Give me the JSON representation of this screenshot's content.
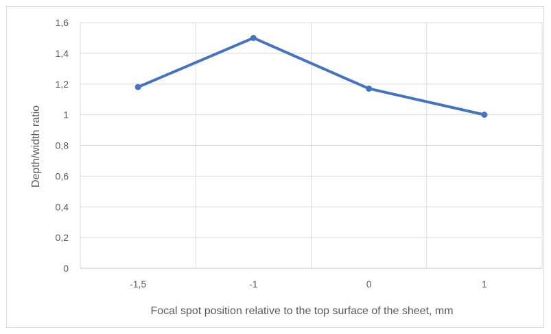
{
  "chart_data": {
    "type": "line",
    "title": "",
    "xlabel": "Focal spot position relative to the top surface of the sheet, mm",
    "ylabel": "Depth/width ratio",
    "categories": [
      "-1,5",
      "-1",
      "0",
      "1"
    ],
    "series": [
      {
        "values": [
          1.18,
          1.5,
          1.17,
          1.0
        ]
      }
    ],
    "ylim": [
      0,
      1.6
    ],
    "yticks": [
      0,
      0.2,
      0.4,
      0.6,
      0.8,
      1,
      1.2,
      1.4,
      1.6
    ],
    "ytick_labels": [
      "0",
      "0,2",
      "0,4",
      "0,6",
      "0,8",
      "1",
      "1,2",
      "1,4",
      "1,6"
    ],
    "grid": true,
    "legend": "none",
    "colors": {
      "series": "#4472c4",
      "grid": "#d9d9d9",
      "axis": "#bfbfbf",
      "text": "#595959"
    }
  }
}
